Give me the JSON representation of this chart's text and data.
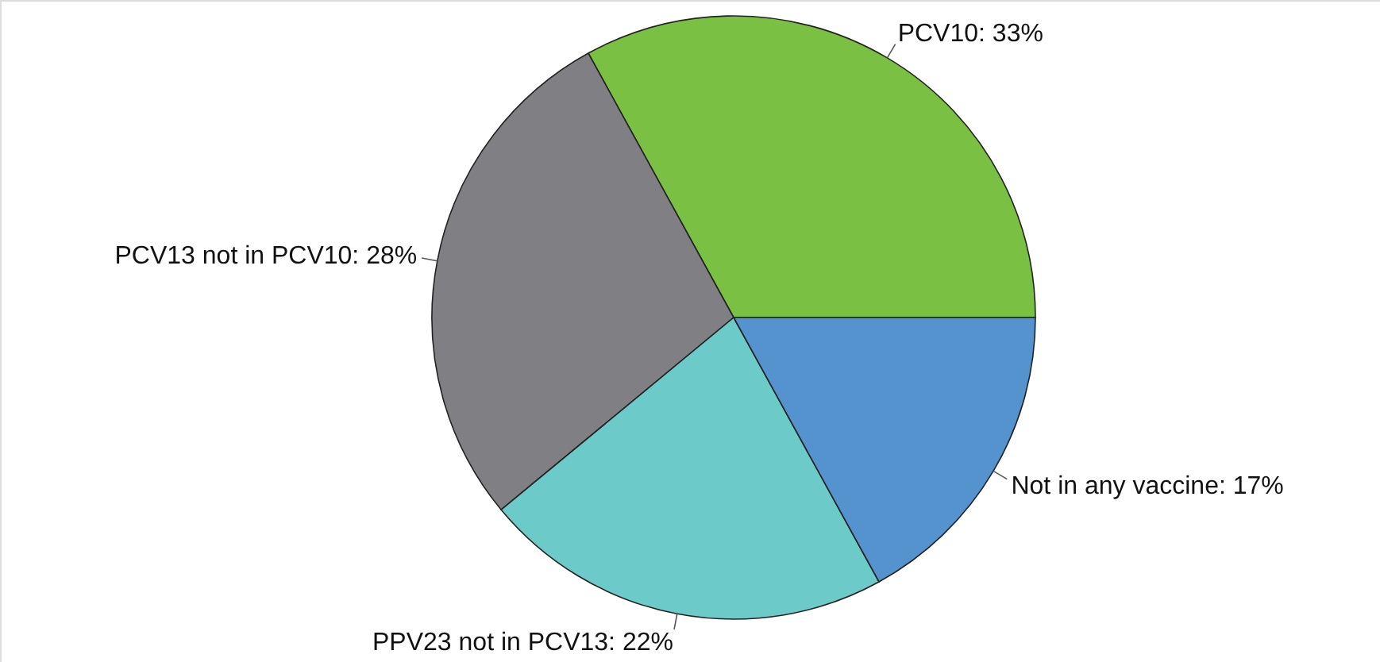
{
  "chart_data": {
    "type": "pie",
    "categories": [
      "PCV10",
      "PCV13 not in PCV10",
      "PPV23 not in PCV13",
      "Not in any vaccine"
    ],
    "values": [
      33,
      28,
      22,
      17
    ],
    "colors": [
      "#7ac143",
      "#808084",
      "#6ccbc8",
      "#5593cf"
    ],
    "value_labels": [
      "33%",
      "28%",
      "22%",
      "17%"
    ],
    "legend": false
  }
}
